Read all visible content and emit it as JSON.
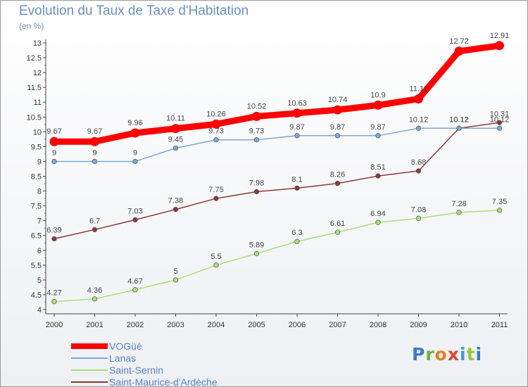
{
  "title": "Evolution du Taux de Taxe d'Habitation",
  "unit_label": "(en %)",
  "logo_text": "Proxiti",
  "chart_data": {
    "type": "line",
    "title": "Evolution du Taux de Taxe d'Habitation",
    "ylabel": "(en %)",
    "xlabel": "",
    "x": [
      "2000",
      "2001",
      "2002",
      "2003",
      "2004",
      "2005",
      "2006",
      "2007",
      "2008",
      "2009",
      "2010",
      "2011"
    ],
    "ylim": [
      4,
      13
    ],
    "yticks": [
      4,
      4.5,
      5,
      5.5,
      6,
      6.5,
      7,
      7.5,
      8,
      8.5,
      9,
      9.5,
      10,
      10.5,
      11,
      11.5,
      12,
      12.5,
      13
    ],
    "ytick_labels": [
      "4",
      "4.5",
      "5",
      "5.5",
      "6",
      "6.5",
      "7",
      "7.5",
      "8",
      "8.5",
      "9",
      "9.5",
      "10",
      "10.5",
      "11",
      "11.5",
      "12",
      "12.5",
      "13"
    ],
    "grid": "off",
    "legend": "bottom-left",
    "series": [
      {
        "name": "VOGüé",
        "color": "#ff0000",
        "values": [
          9.67,
          9.67,
          9.96,
          10.11,
          10.26,
          10.52,
          10.63,
          10.74,
          10.9,
          11.11,
          12.72,
          12.91
        ],
        "labels": [
          "9.67",
          "9.67",
          "9.96",
          "10.11",
          "10.26",
          "10.52",
          "10.63",
          "10.74",
          "10.9",
          "11.11",
          "12.72",
          "12.91"
        ]
      },
      {
        "name": "Lanas",
        "color": "#7aa9d6",
        "values": [
          9,
          9,
          9,
          9.45,
          9.73,
          9.73,
          9.87,
          9.87,
          9.87,
          10.12,
          10.12,
          10.12
        ],
        "labels": [
          "9",
          "9",
          "9",
          "9.45",
          "9.73",
          "9.73",
          "9.87",
          "9.87",
          "9.87",
          "10.12",
          "10.12",
          "10.12"
        ]
      },
      {
        "name": "Saint-Sernin",
        "color": "#a8e07a",
        "values": [
          4.27,
          4.36,
          4.67,
          5,
          5.5,
          5.89,
          6.3,
          6.61,
          6.94,
          7.08,
          7.28,
          7.35
        ],
        "labels": [
          "4.27",
          "4.36",
          "4.67",
          "5",
          "5.5",
          "5.89",
          "6.3",
          "6.61",
          "6.94",
          "7.08",
          "7.28",
          "7.35"
        ]
      },
      {
        "name": "Saint-Maurice-d'Ardèche",
        "color": "#8b3a3a",
        "values": [
          6.39,
          6.7,
          7.03,
          7.38,
          7.75,
          7.98,
          8.1,
          8.26,
          8.51,
          8.68,
          10.12,
          10.31
        ],
        "labels": [
          "6.39",
          "6.7",
          "7.03",
          "7.38",
          "7.75",
          "7.98",
          "8.1",
          "8.26",
          "8.51",
          "8.68",
          "10.12",
          "10.31"
        ]
      }
    ]
  }
}
